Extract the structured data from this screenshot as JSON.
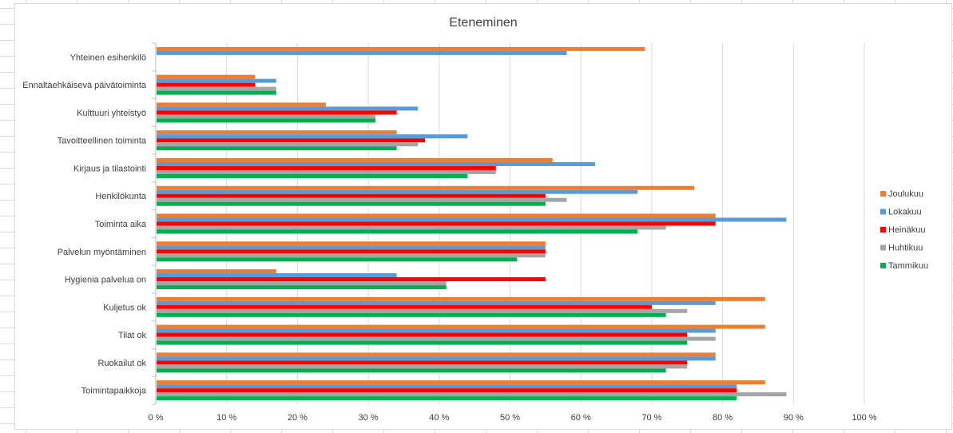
{
  "chart_data": {
    "type": "bar",
    "orientation": "horizontal",
    "title": "Eteneminen",
    "xlabel": "",
    "ylabel": "",
    "xlim": [
      0,
      100
    ],
    "x_ticks": [
      "0 %",
      "10 %",
      "20 %",
      "30 %",
      "40 %",
      "50 %",
      "60 %",
      "70 %",
      "80 %",
      "90 %",
      "100 %"
    ],
    "grid": true,
    "legend_position": "right",
    "categories": [
      "Yhteinen esihenkilö",
      "Ennaltaehkäisevä päivätoiminta",
      "Kulttuuri yhteistyö",
      "Tavoitteellinen toiminta",
      "Kirjaus ja tilastointi",
      "Henkilökunta",
      "Toiminta aika",
      "Palvelun myöntäminen",
      "Hygienia palvelua on",
      "Kuljetus ok",
      "Tilat ok",
      "Ruokailut ok",
      "Toimintapaikkoja"
    ],
    "series": [
      {
        "name": "Joulukuu",
        "color": "#ed7d31",
        "values": [
          69,
          14,
          24,
          34,
          56,
          76,
          79,
          55,
          17,
          86,
          86,
          79,
          86
        ]
      },
      {
        "name": "Lokakuu",
        "color": "#5b9bd5",
        "values": [
          58,
          17,
          37,
          44,
          62,
          68,
          89,
          55,
          34,
          79,
          79,
          79,
          82
        ]
      },
      {
        "name": "Heinäkuu",
        "color": "#ff0000",
        "values": [
          null,
          14,
          34,
          38,
          48,
          55,
          79,
          55,
          55,
          70,
          75,
          75,
          82
        ]
      },
      {
        "name": "Huhtikuu",
        "color": "#a5a5a5",
        "values": [
          null,
          17,
          31,
          37,
          48,
          58,
          72,
          55,
          41,
          75,
          79,
          75,
          89
        ]
      },
      {
        "name": "Tammikuu",
        "color": "#00b050",
        "values": [
          null,
          17,
          31,
          34,
          44,
          55,
          68,
          51,
          41,
          72,
          75,
          72,
          82
        ]
      }
    ]
  }
}
